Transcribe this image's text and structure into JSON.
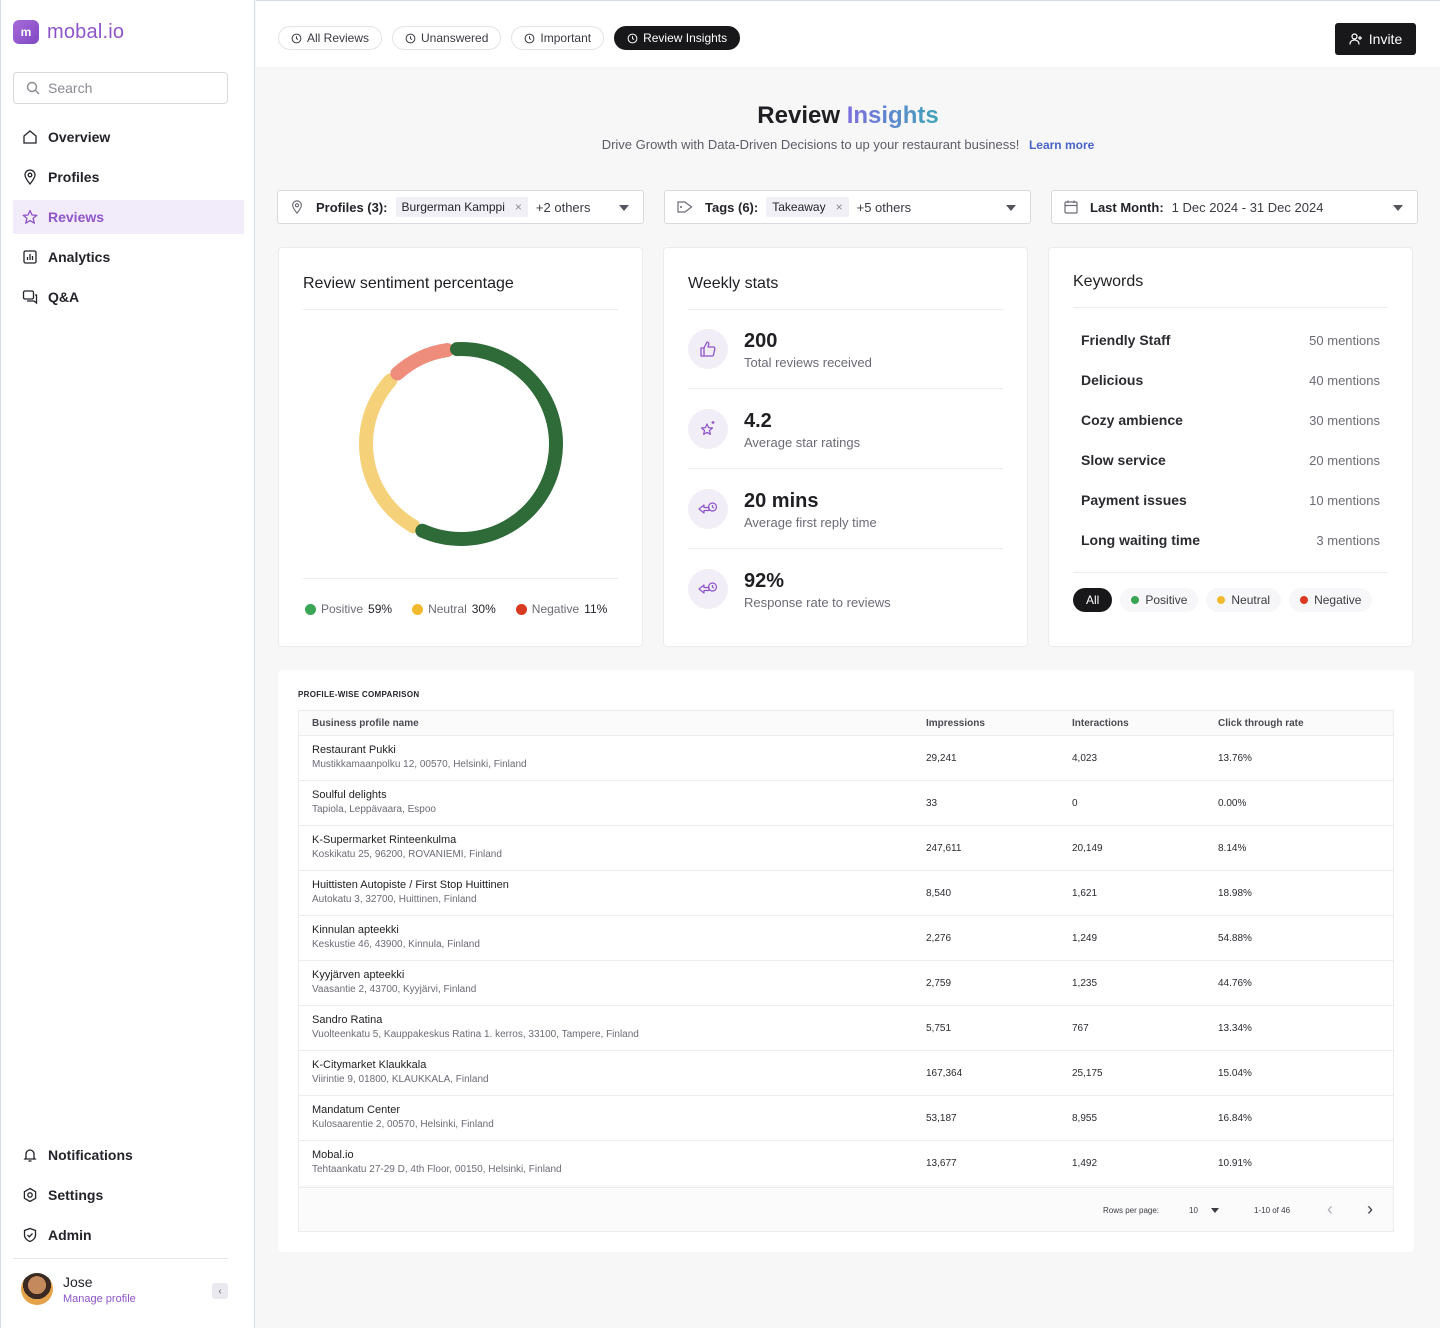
{
  "app": {
    "logo_text": "mobal.io",
    "logo_mark": "m"
  },
  "sidebar": {
    "search_placeholder": "Search",
    "items": [
      {
        "label": "Overview",
        "icon": "home-icon",
        "active": false
      },
      {
        "label": "Profiles",
        "icon": "location-pin-icon",
        "active": false
      },
      {
        "label": "Reviews",
        "icon": "star-icon",
        "active": true
      },
      {
        "label": "Analytics",
        "icon": "bar-chart-icon",
        "active": false
      },
      {
        "label": "Q&A",
        "icon": "chat-icon",
        "active": false
      }
    ],
    "bottom_items": [
      {
        "label": "Notifications",
        "icon": "bell-icon"
      },
      {
        "label": "Settings",
        "icon": "gear-icon"
      },
      {
        "label": "Admin",
        "icon": "shield-icon"
      }
    ],
    "user": {
      "name": "Jose",
      "link": "Manage profile"
    }
  },
  "topbar": {
    "tabs": [
      {
        "label": "All Reviews",
        "active": false
      },
      {
        "label": "Unanswered",
        "active": false
      },
      {
        "label": "Important",
        "active": false
      },
      {
        "label": "Review Insights",
        "active": true
      }
    ],
    "invite_label": "Invite"
  },
  "header": {
    "title_main": "Review",
    "title_accent": "Insights",
    "subtitle": "Drive Growth with Data-Driven Decisions to up your restaurant business!",
    "learn_more": "Learn more"
  },
  "filters": {
    "profiles": {
      "label": "Profiles (3):",
      "chip": "Burgerman Kamppi",
      "others": "+2 others"
    },
    "tags": {
      "label": "Tags (6):",
      "chip": "Takeaway",
      "others": "+5 others"
    },
    "date": {
      "label": "Last Month:",
      "value": "1 Dec 2024 - 31 Dec 2024"
    }
  },
  "sentiment": {
    "title": "Review sentiment percentage",
    "colors": {
      "positive": "#2f6b38",
      "neutral": "#f5d27a",
      "negative": "#ef8d7c"
    },
    "legend": [
      {
        "label": "Positive",
        "value": "59%",
        "value_num": 59,
        "dot": "#3aa655"
      },
      {
        "label": "Neutral",
        "value": "30%",
        "value_num": 30,
        "dot": "#f2b92e"
      },
      {
        "label": "Negative",
        "value": "11%",
        "value_num": 11,
        "dot": "#d93a1f"
      }
    ]
  },
  "weekly": {
    "title": "Weekly stats",
    "stats": [
      {
        "value": "200",
        "label": "Total reviews received",
        "icon": "thumbs-up-icon"
      },
      {
        "value": "4.2",
        "label": "Average star ratings",
        "icon": "sparkle-star-icon"
      },
      {
        "value": "20 mins",
        "label": "Average first reply time",
        "icon": "fast-reply-icon"
      },
      {
        "value": "92%",
        "label": "Response rate to reviews",
        "icon": "response-rate-icon"
      }
    ]
  },
  "keywords": {
    "title": "Keywords",
    "rows": [
      {
        "name": "Friendly Staff",
        "count": "50 mentions"
      },
      {
        "name": "Delicious",
        "count": "40 mentions"
      },
      {
        "name": "Cozy ambience",
        "count": "30 mentions"
      },
      {
        "name": "Slow service",
        "count": "20 mentions"
      },
      {
        "name": "Payment issues",
        "count": "10 mentions"
      },
      {
        "name": "Long waiting time",
        "count": "3 mentions"
      }
    ],
    "tabs": [
      {
        "label": "All",
        "active": true,
        "dot": ""
      },
      {
        "label": "Positive",
        "active": false,
        "dot": "#3aa655"
      },
      {
        "label": "Neutral",
        "active": false,
        "dot": "#f2b92e"
      },
      {
        "label": "Negative",
        "active": false,
        "dot": "#d93a1f"
      }
    ]
  },
  "table": {
    "title": "PROFILE-WISE COMPARISON",
    "headers": [
      "Business profile name",
      "Impressions",
      "Interactions",
      "Click through rate"
    ],
    "rows": [
      {
        "name": "Restaurant Pukki",
        "address": "Mustikkamaanpolku 12, 00570, Helsinki, Finland",
        "impressions": "29,241",
        "interactions": "4,023",
        "ctr": "13.76%"
      },
      {
        "name": "Soulful delights",
        "address": "Tapiola, Leppävaara, Espoo",
        "impressions": "33",
        "interactions": "0",
        "ctr": "0.00%"
      },
      {
        "name": "K-Supermarket Rinteenkulma",
        "address": "Koskikatu 25, 96200, ROVANIEMI, Finland",
        "impressions": "247,611",
        "interactions": "20,149",
        "ctr": "8.14%"
      },
      {
        "name": "Huittisten Autopiste / First Stop Huittinen",
        "address": "Autokatu 3, 32700, Huittinen, Finland",
        "impressions": "8,540",
        "interactions": "1,621",
        "ctr": "18.98%"
      },
      {
        "name": "Kinnulan apteekki",
        "address": "Keskustie 46, 43900, Kinnula, Finland",
        "impressions": "2,276",
        "interactions": "1,249",
        "ctr": "54.88%"
      },
      {
        "name": "Kyyjärven apteekki",
        "address": "Vaasantie 2, 43700, Kyyjärvi, Finland",
        "impressions": "2,759",
        "interactions": "1,235",
        "ctr": "44.76%"
      },
      {
        "name": "Sandro Ratina",
        "address": "Vuolteenkatu 5, Kauppakeskus Ratina 1. kerros, 33100, Tampere, Finland",
        "impressions": "5,751",
        "interactions": "767",
        "ctr": "13.34%"
      },
      {
        "name": "K-Citymarket Klaukkala",
        "address": "Viirintie 9, 01800, KLAUKKALA, Finland",
        "impressions": "167,364",
        "interactions": "25,175",
        "ctr": "15.04%"
      },
      {
        "name": "Mandatum Center",
        "address": "Kulosaarentie 2, 00570, Helsinki, Finland",
        "impressions": "53,187",
        "interactions": "8,955",
        "ctr": "16.84%"
      },
      {
        "name": "Mobal.io",
        "address": "Tehtaankatu 27-29 D, 4th Floor, 00150, Helsinki, Finland",
        "impressions": "13,677",
        "interactions": "1,492",
        "ctr": "10.91%"
      }
    ],
    "pager": {
      "rows_label": "Rows per page:",
      "rows_value": "10",
      "range": "1-10 of 46"
    }
  }
}
